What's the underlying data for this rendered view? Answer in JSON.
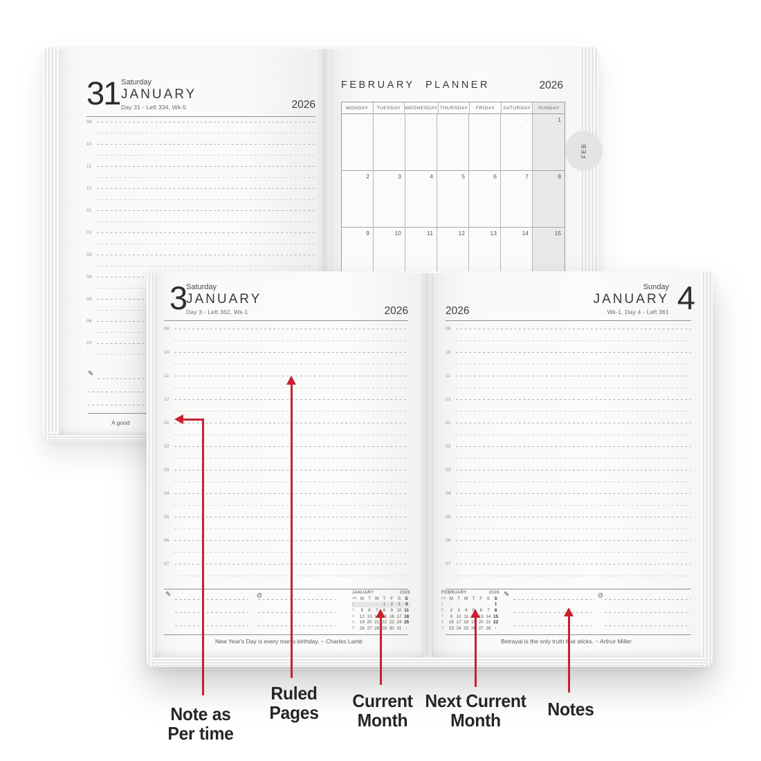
{
  "colors": {
    "accent_red": "#c7202f",
    "page": "#f8f8f7",
    "sunday_shade": "#e9e9e7",
    "week_highlight": "#e6e6e4"
  },
  "icons": {
    "pencil_glyph": "✎"
  },
  "hour_labels": [
    "09",
    "10",
    "11",
    "12",
    "01",
    "02",
    "03",
    "04",
    "05",
    "06",
    "07"
  ],
  "top_spread": {
    "left_page": {
      "day_number": "31",
      "weekday": "Saturday",
      "month": "JANUARY",
      "meta": "Day 31 - Left 334, Wk-5",
      "year": "2026",
      "quote_fragment": "A good"
    },
    "right_page": {
      "title": "FEBRUARY PLANNER",
      "year": "2026",
      "tab_label": "FEB",
      "weekday_headers": [
        "MONDAY",
        "TUESDAY",
        "WEDNESDAY",
        "THURSDAY",
        "FRIDAY",
        "SATURDAY",
        "SUNDAY"
      ],
      "rows": [
        [
          "·",
          "·",
          "·",
          "·",
          "·",
          "·",
          "1"
        ],
        [
          "2",
          "3",
          "4",
          "5",
          "6",
          "7",
          "8"
        ],
        [
          "9",
          "10",
          "11",
          "12",
          "13",
          "14",
          "15"
        ]
      ]
    }
  },
  "bottom_spread": {
    "left_page": {
      "day_number": "3",
      "weekday": "Saturday",
      "month": "JANUARY",
      "meta": "Day 3 - Left 362, Wk-1",
      "year": "2026",
      "at_symbol": "@",
      "quote": "New Year's Day is every man's birthday. ~ Charles Lamb",
      "mini_calendar": {
        "title": "JANUARY",
        "year": "2026",
        "wk_label": "wk",
        "day_headers": [
          "M",
          "T",
          "W",
          "T",
          "F",
          "S",
          "S"
        ],
        "weeks": [
          {
            "wk": "1",
            "highlight": true,
            "days": [
              "·",
              "·",
              "·",
              "1",
              "2",
              "3",
              "4"
            ]
          },
          {
            "wk": "2",
            "days": [
              "5",
              "6",
              "7",
              "8",
              "9",
              "10",
              "11"
            ]
          },
          {
            "wk": "3",
            "days": [
              "12",
              "13",
              "14",
              "15",
              "16",
              "17",
              "18"
            ]
          },
          {
            "wk": "4",
            "days": [
              "19",
              "20",
              "21",
              "22",
              "23",
              "24",
              "25"
            ]
          },
          {
            "wk": "5",
            "days": [
              "26",
              "27",
              "28",
              "29",
              "30",
              "31",
              "·"
            ]
          }
        ]
      }
    },
    "right_page": {
      "day_number": "4",
      "weekday": "Sunday",
      "month": "JANUARY",
      "meta": "Wk-1, Day 4 - Left 361",
      "year": "2026",
      "at_symbol": "@",
      "quote": "Betrayal is the only truth that sticks. ~ Arthur Miller",
      "mini_calendar": {
        "title": "FEBRUARY",
        "year": "2026",
        "wk_label": "wk",
        "day_headers": [
          "M",
          "T",
          "W",
          "T",
          "F",
          "S",
          "S"
        ],
        "weeks": [
          {
            "wk": "5",
            "days": [
              "·",
              "·",
              "·",
              "·",
              "·",
              "·",
              "1"
            ]
          },
          {
            "wk": "6",
            "days": [
              "2",
              "3",
              "4",
              "5",
              "6",
              "7",
              "8"
            ]
          },
          {
            "wk": "7",
            "days": [
              "9",
              "10",
              "11",
              "12",
              "13",
              "14",
              "15"
            ]
          },
          {
            "wk": "8",
            "days": [
              "16",
              "17",
              "18",
              "19",
              "20",
              "21",
              "22"
            ]
          },
          {
            "wk": "9",
            "days": [
              "23",
              "24",
              "25",
              "26",
              "27",
              "28",
              "·"
            ]
          }
        ]
      }
    }
  },
  "annotations": [
    {
      "id": "note-as-per-time",
      "lines": [
        "Note as",
        "Per time"
      ]
    },
    {
      "id": "ruled-pages",
      "lines": [
        "Ruled",
        "Pages"
      ]
    },
    {
      "id": "current-month",
      "lines": [
        "Current",
        "Month"
      ]
    },
    {
      "id": "next-current-month",
      "lines": [
        "Next Current",
        "Month"
      ]
    },
    {
      "id": "notes",
      "lines": [
        "Notes"
      ]
    }
  ]
}
